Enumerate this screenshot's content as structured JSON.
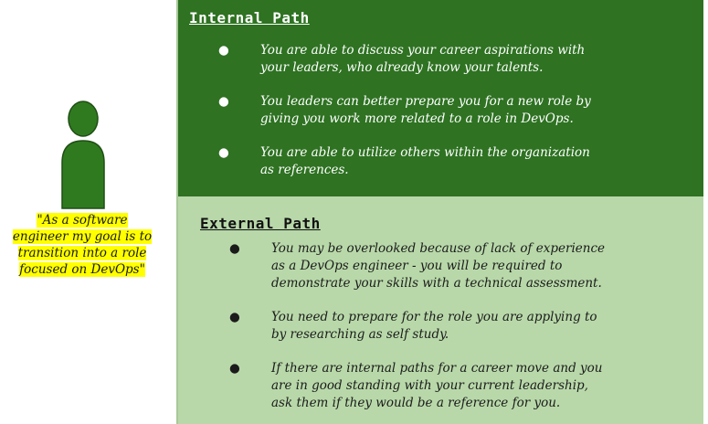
{
  "quote": {
    "text": "\"As a software engineer my goal is to transition into a role focused on DevOps\""
  },
  "internal_path": {
    "title": "Internal Path",
    "bullets": [
      "You are able to discuss your career aspirations with your leaders, who already know your talents.",
      "You leaders can better prepare you for a new role by giving you work more related to a role in DevOps.",
      "You are able to utilize others within the organization as references."
    ]
  },
  "external_path": {
    "title": "External Path",
    "bullets": [
      "You may be overlooked because of lack of experience as a DevOps engineer - you will be required to demonstrate your skills with a technical assessment.",
      "You need to prepare for the role you are applying to by researching as self study.",
      "If there are internal paths for a career move and you are in good standing with your current leadership, ask them if they would be a reference for you."
    ]
  },
  "bullet_glyph": "●",
  "colors": {
    "internal_bg": "#2e7222",
    "external_bg": "#b8d8a9",
    "person_fill": "#2f7a1f",
    "highlight": "#ffff00"
  }
}
